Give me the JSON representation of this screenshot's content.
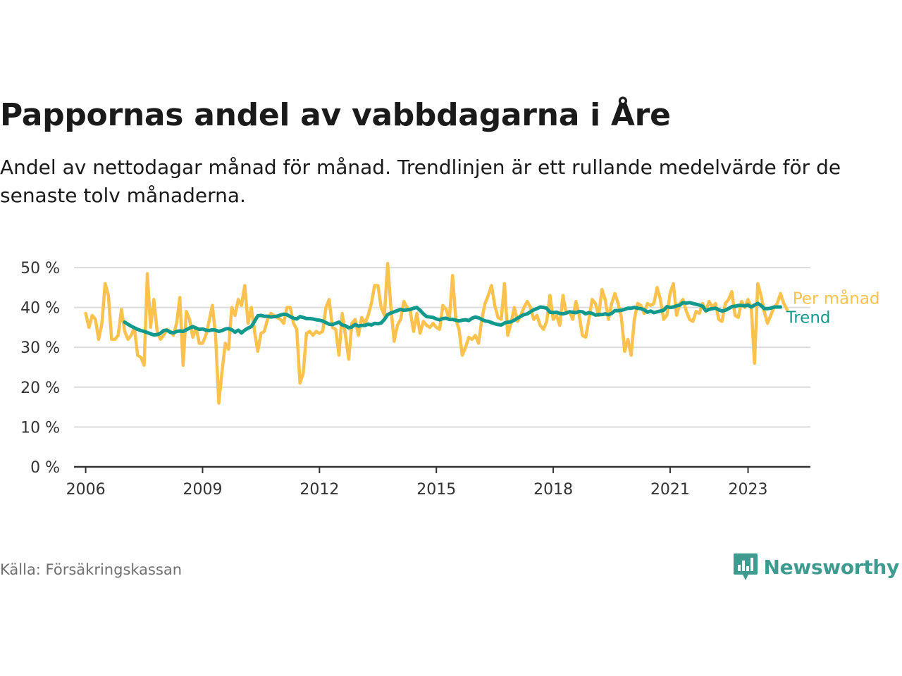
{
  "title": "Pappornas andel av vabbdagarna i Åre",
  "subtitle": "Andel av nettodagar månad för månad. Trendlinjen är ett rullande medelvärde för de senaste tolv månaderna.",
  "source": "Källa: Försäkringskassan",
  "brand": {
    "name": "Newsworthy",
    "icon": "newsworthy-logo-icon"
  },
  "colors": {
    "monthly": "#fcc24d",
    "trend": "#11998e",
    "grid": "#dcdcdc",
    "axis": "#333333",
    "text": "#333333"
  },
  "chart_data": {
    "type": "line",
    "title": "Pappornas andel av vabbdagarna i Åre",
    "xlabel": "",
    "ylabel": "",
    "ylim": [
      0,
      50
    ],
    "xlim": [
      2005.7,
      2024.6
    ],
    "yticks": [
      0,
      10,
      20,
      30,
      40,
      50
    ],
    "ytick_labels": [
      "0 %",
      "10 %",
      "20 %",
      "30 %",
      "40 %",
      "50 %"
    ],
    "xticks": [
      2006,
      2009,
      2012,
      2015,
      2018,
      2021,
      2023
    ],
    "xtick_labels": [
      "2006",
      "2009",
      "2012",
      "2015",
      "2018",
      "2021",
      "2023"
    ],
    "grid": true,
    "start": 2006.0,
    "step": 0.08333,
    "series": [
      {
        "name": "Per månad",
        "values": [
          38.5,
          35,
          38,
          37,
          32,
          36,
          46,
          43,
          32,
          32,
          33,
          39.5,
          34,
          32,
          33,
          35,
          28,
          27.5,
          25.5,
          48.5,
          35,
          42,
          34,
          32,
          33,
          34.5,
          34,
          33,
          36,
          42.5,
          25.5,
          39,
          37,
          32.5,
          35,
          31,
          31,
          33,
          36.5,
          40.5,
          33,
          16,
          24,
          31,
          29.5,
          40,
          38,
          42,
          40.5,
          45.5,
          36,
          40,
          34,
          29,
          33.5,
          34,
          37,
          38.5,
          38,
          37.5,
          37,
          36,
          40,
          40,
          36,
          34.5,
          21,
          23.5,
          33.5,
          34,
          33,
          34,
          33.5,
          34,
          40,
          42,
          35,
          34.5,
          28,
          38.5,
          33,
          27,
          36,
          37,
          33,
          37.5,
          36,
          38,
          41,
          45.5,
          45.5,
          40,
          38,
          51,
          40,
          31.5,
          35.5,
          37,
          41.5,
          40,
          39,
          34,
          38.5,
          33.5,
          36.5,
          35.5,
          35,
          36,
          35,
          34.5,
          40.5,
          39.5,
          37,
          48,
          37,
          34.5,
          28,
          30,
          32.5,
          32,
          33,
          31,
          37,
          41,
          43,
          45.5,
          40.5,
          37.5,
          37,
          46,
          33,
          36,
          40,
          36.5,
          38,
          40,
          41.5,
          40,
          37,
          38,
          35.5,
          34.5,
          36.5,
          43,
          37,
          38,
          35.5,
          43,
          38.5,
          39,
          37,
          41.5,
          38,
          33,
          32.5,
          37,
          42,
          41,
          38,
          44.5,
          42,
          37,
          41,
          43.5,
          41,
          37.5,
          29,
          32,
          28,
          37,
          41,
          40.5,
          38.5,
          41,
          40.5,
          41,
          45,
          42,
          37,
          38,
          43.5,
          46,
          38,
          41,
          42,
          39,
          37,
          36.5,
          39,
          38.5,
          41,
          39,
          41.5,
          40,
          41,
          37,
          36.5,
          41,
          42,
          44,
          38,
          37.5,
          41.5,
          40,
          42,
          40,
          26,
          46,
          43,
          39,
          36,
          38,
          40,
          41,
          43.5,
          41,
          39.5
        ],
        "color": "#fcc24d"
      },
      {
        "name": "Trend",
        "start_index": 12,
        "values": [
          36.3,
          35.8,
          35.3,
          34.9,
          34.5,
          34.2,
          34,
          33.7,
          33.4,
          33.1,
          33.2,
          33.5,
          34.2,
          34.3,
          33.8,
          33.6,
          34,
          34.1,
          34,
          34.4,
          34.8,
          35.2,
          34.8,
          34.5,
          34.6,
          34.3,
          34.2,
          34.4,
          34.3,
          34,
          34.2,
          34.6,
          34.7,
          34.4,
          33.8,
          34.3,
          33.6,
          34.3,
          34.8,
          35.2,
          36.5,
          37.9,
          38,
          37.8,
          37.8,
          37.6,
          37.7,
          37.8,
          38.1,
          38.3,
          38.2,
          37.7,
          37.3,
          37.1,
          37.7,
          37.5,
          37.2,
          37.2,
          37.1,
          36.9,
          36.8,
          36.6,
          36.2,
          35.8,
          35.7,
          36,
          36.3,
          35.6,
          35.4,
          34.9,
          35.1,
          35.7,
          35.3,
          35.5,
          35.5,
          35.8,
          35.6,
          36,
          35.9,
          36.1,
          37,
          38.2,
          38.6,
          38.9,
          39.2,
          39.5,
          39.3,
          39.4,
          39.5,
          39.8,
          40,
          39.3,
          38.4,
          37.7,
          37.6,
          37.5,
          37.1,
          36.9,
          37.2,
          37.3,
          37,
          37,
          36.8,
          36.6,
          36.8,
          36.9,
          36.7,
          37.3,
          37.6,
          37.4,
          37,
          36.6,
          36.5,
          36.2,
          35.9,
          35.7,
          35.6,
          36.1,
          36.3,
          36.4,
          36.8,
          37.3,
          37.8,
          38.2,
          38.4,
          38.9,
          39.4,
          39.7,
          40.1,
          40,
          39.8,
          38.8,
          38.7,
          38.8,
          38.5,
          38.4,
          38.6,
          38.9,
          38.8,
          38.7,
          39,
          38.9,
          38.4,
          38.7,
          38.5,
          38.1,
          38.2,
          38.2,
          38.4,
          38.2,
          38.5,
          39.2,
          39.2,
          39.3,
          39.5,
          39.8,
          39.8,
          40,
          39.8,
          39.7,
          39.4,
          38.8,
          39.1,
          38.7,
          38.9,
          39.1,
          39.3,
          40.2,
          40,
          40.1,
          40.4,
          40.6,
          41.2,
          41.1,
          41.2,
          41,
          40.8,
          40.6,
          40.3,
          39.2,
          39.5,
          39.7,
          39.8,
          39.4,
          39.1,
          39.3,
          39.7,
          40.2,
          40.3,
          40.5,
          40.5,
          40.4,
          40.6,
          40.1,
          40.6,
          41,
          40.5,
          39.7,
          39.7,
          39.8,
          40.1,
          40.1,
          40.1
        ]
      }
    ]
  }
}
